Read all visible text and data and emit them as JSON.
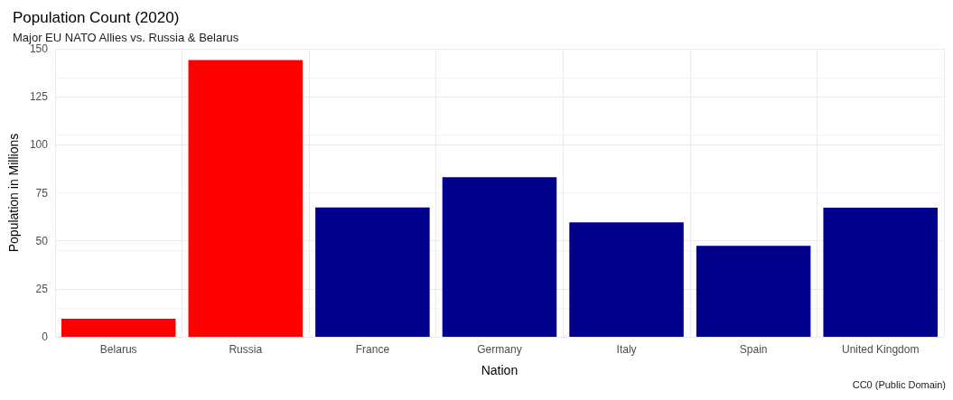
{
  "chart_data": {
    "type": "bar",
    "title": "Population Count (2020)",
    "subtitle": "Major EU NATO Allies vs. Russia & Belarus",
    "xlabel": "Nation",
    "ylabel": "Population in Millions",
    "categories": [
      "Belarus",
      "Russia",
      "France",
      "Germany",
      "Italy",
      "Spain",
      "United Kingdom"
    ],
    "values": [
      9.4,
      144.1,
      67.4,
      83.1,
      59.6,
      47.4,
      67.3
    ],
    "colors": [
      "#ff0000",
      "#ff0000",
      "#00008b",
      "#00008b",
      "#00008b",
      "#00008b",
      "#00008b"
    ],
    "ylim": [
      0,
      150
    ],
    "yticks": [
      0,
      25,
      50,
      75,
      100,
      125,
      150
    ],
    "grid": true,
    "annotations": [
      "CC0 (Public Domain)"
    ]
  }
}
